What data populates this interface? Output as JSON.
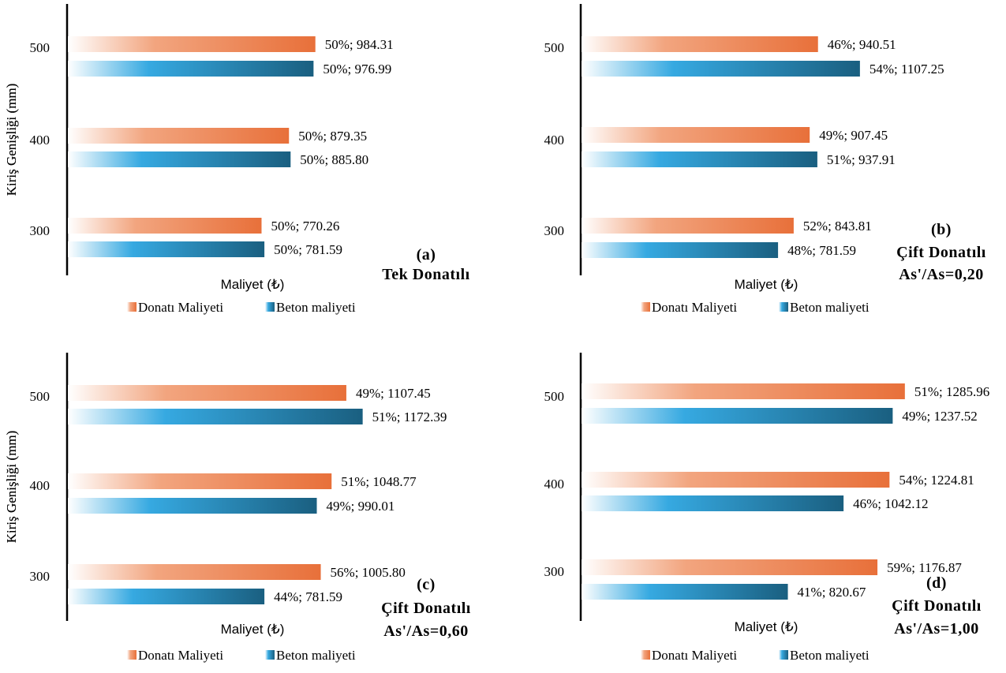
{
  "colors": {
    "donati_dark": "#E8703A",
    "donati_mid": "#F2A57F",
    "beton_dark": "#1A5F80",
    "beton_bright": "#36A9E1",
    "axis": "#000000"
  },
  "chart_data": [
    {
      "type": "bar",
      "orientation": "horizontal",
      "panel_label": "(a)",
      "caption_lines": [
        "Tek Donatılı"
      ],
      "ylabel": "Kiriş Genişliği (mm)",
      "xlabel": "Maliyet (₺)",
      "categories": [
        "300",
        "400",
        "500"
      ],
      "series": [
        {
          "name": "Donatı Maliyeti",
          "values": [
            770.26,
            879.35,
            984.31
          ],
          "percent": [
            50,
            50,
            50
          ],
          "labels": [
            "50%; 770.26",
            "50%; 879.35",
            "50%; 984.31"
          ]
        },
        {
          "name": "Beton maliyeti",
          "values": [
            781.59,
            885.8,
            976.99
          ],
          "percent": [
            50,
            50,
            50
          ],
          "labels": [
            "50%; 781.59",
            "50%; 885.80",
            "50%; 976.99"
          ]
        }
      ],
      "legend": "bottom"
    },
    {
      "type": "bar",
      "orientation": "horizontal",
      "panel_label": "(b)",
      "caption_lines": [
        "Çift Donatılı",
        "As'/As=0,20"
      ],
      "ylabel": "Kiriş Genişliği (mm)",
      "xlabel": "Maliyet (₺)",
      "categories": [
        "300",
        "400",
        "500"
      ],
      "series": [
        {
          "name": "Donatı Maliyeti",
          "values": [
            843.81,
            907.45,
            940.51
          ],
          "percent": [
            52,
            49,
            46
          ],
          "labels": [
            "52%; 843.81",
            "49%; 907.45",
            "46%; 940.51"
          ]
        },
        {
          "name": "Beton maliyeti",
          "values": [
            781.59,
            937.91,
            1107.25
          ],
          "percent": [
            48,
            51,
            54
          ],
          "labels": [
            "48%; 781.59",
            "51%; 937.91",
            "54%; 1107.25"
          ]
        }
      ],
      "legend": "bottom"
    },
    {
      "type": "bar",
      "orientation": "horizontal",
      "panel_label": "(c)",
      "caption_lines": [
        "Çift Donatılı",
        "As'/As=0,60"
      ],
      "ylabel": "Kiriş Genişliği (mm)",
      "xlabel": "Maliyet (₺)",
      "categories": [
        "300",
        "400",
        "500"
      ],
      "series": [
        {
          "name": "Donatı Maliyeti",
          "values": [
            1005.8,
            1048.77,
            1107.45
          ],
          "percent": [
            56,
            51,
            49
          ],
          "labels": [
            "56%; 1005.80",
            "51%; 1048.77",
            "49%; 1107.45"
          ]
        },
        {
          "name": "Beton maliyeti",
          "values": [
            781.59,
            990.01,
            1172.39
          ],
          "percent": [
            44,
            49,
            51
          ],
          "labels": [
            "44%; 781.59",
            "49%; 990.01",
            "51%; 1172.39"
          ]
        }
      ],
      "legend": "bottom"
    },
    {
      "type": "bar",
      "orientation": "horizontal",
      "panel_label": "(d)",
      "caption_lines": [
        "Çift Donatılı",
        "As'/As=1,00"
      ],
      "ylabel": "Kiriş Genişliği (mm)",
      "xlabel": "Maliyet (₺)",
      "categories": [
        "300",
        "400",
        "500"
      ],
      "series": [
        {
          "name": "Donatı Maliyeti",
          "values": [
            1176.87,
            1224.81,
            1285.96
          ],
          "percent": [
            59,
            54,
            51
          ],
          "labels": [
            "59%; 1176.87",
            "54%; 1224.81",
            "51%; 1285.96"
          ]
        },
        {
          "name": "Beton maliyeti",
          "values": [
            820.67,
            1042.12,
            1237.52
          ],
          "percent": [
            41,
            46,
            49
          ],
          "labels": [
            "41%; 820.67",
            "46%; 1042.12",
            "49%; 1237.52"
          ]
        }
      ],
      "legend": "bottom"
    }
  ]
}
